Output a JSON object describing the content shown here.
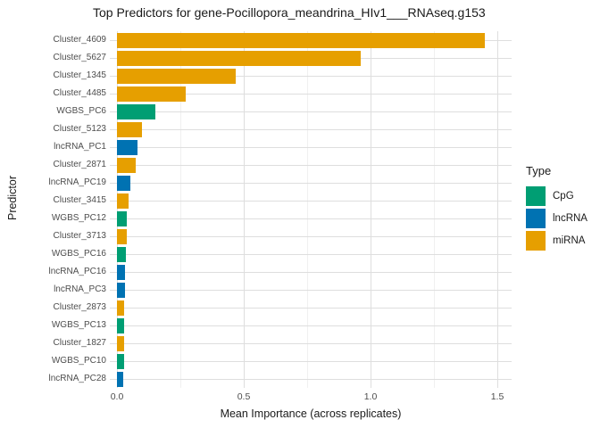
{
  "title": "Top Predictors for gene-Pocillopora_meandrina_HIv1___RNAseq.g153",
  "axes": {
    "x_label": "Mean Importance (across replicates)",
    "y_label": "Predictor"
  },
  "legend": {
    "title": "Type",
    "entries": [
      {
        "label": "CpG",
        "color": "#009E73"
      },
      {
        "label": "lncRNA",
        "color": "#0072B2"
      },
      {
        "label": "miRNA",
        "color": "#E69F00"
      }
    ]
  },
  "colors": {
    "CpG": "#009E73",
    "lncRNA": "#0072B2",
    "miRNA": "#E69F00",
    "grid_major": "#DEDEDE",
    "grid_minor": "#F0F0F0"
  },
  "chart_data": {
    "type": "bar",
    "orientation": "horizontal",
    "title": "Top Predictors for gene-Pocillopora_meandrina_HIv1___RNAseq.g153",
    "xlabel": "Mean Importance (across replicates)",
    "ylabel": "Predictor",
    "xlim": [
      0,
      1.55
    ],
    "x_ticks": [
      0,
      0.5,
      1.0,
      1.5
    ],
    "x_tick_labels": [
      "0.0",
      "0.5",
      "1.0",
      "1.5"
    ],
    "x_minor_ticks": [
      0.25,
      0.75,
      1.25
    ],
    "grid": true,
    "legend_position": "right",
    "bars": [
      {
        "label": "Cluster_4609",
        "type": "miRNA",
        "value": 1.45
      },
      {
        "label": "Cluster_5627",
        "type": "miRNA",
        "value": 0.96
      },
      {
        "label": "Cluster_1345",
        "type": "miRNA",
        "value": 0.47
      },
      {
        "label": "Cluster_4485",
        "type": "miRNA",
        "value": 0.27
      },
      {
        "label": "WGBS_PC6",
        "type": "CpG",
        "value": 0.15
      },
      {
        "label": "Cluster_5123",
        "type": "miRNA",
        "value": 0.1
      },
      {
        "label": "lncRNA_PC1",
        "type": "lncRNA",
        "value": 0.081
      },
      {
        "label": "Cluster_2871",
        "type": "miRNA",
        "value": 0.073
      },
      {
        "label": "lncRNA_PC19",
        "type": "lncRNA",
        "value": 0.054
      },
      {
        "label": "Cluster_3415",
        "type": "miRNA",
        "value": 0.047
      },
      {
        "label": "WGBS_PC12",
        "type": "CpG",
        "value": 0.04
      },
      {
        "label": "Cluster_3713",
        "type": "miRNA",
        "value": 0.04
      },
      {
        "label": "WGBS_PC16",
        "type": "CpG",
        "value": 0.036
      },
      {
        "label": "lncRNA_PC16",
        "type": "lncRNA",
        "value": 0.033
      },
      {
        "label": "lncRNA_PC3",
        "type": "lncRNA",
        "value": 0.032
      },
      {
        "label": "Cluster_2873",
        "type": "miRNA",
        "value": 0.028
      },
      {
        "label": "WGBS_PC13",
        "type": "CpG",
        "value": 0.027
      },
      {
        "label": "Cluster_1827",
        "type": "miRNA",
        "value": 0.027
      },
      {
        "label": "WGBS_PC10",
        "type": "CpG",
        "value": 0.027
      },
      {
        "label": "lncRNA_PC28",
        "type": "lncRNA",
        "value": 0.026
      }
    ]
  }
}
